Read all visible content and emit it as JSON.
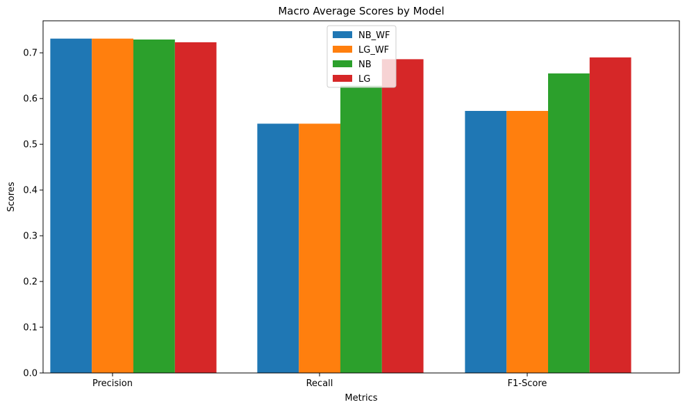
{
  "chart_data": {
    "type": "bar",
    "title": "Macro Average Scores by Model",
    "xlabel": "Metrics",
    "ylabel": "Scores",
    "categories": [
      "Precision",
      "Recall",
      "F1-Score"
    ],
    "ylim": [
      0,
      0.77
    ],
    "yticks": [
      "0.0",
      "0.1",
      "0.2",
      "0.3",
      "0.4",
      "0.5",
      "0.6",
      "0.7"
    ],
    "legend_position": "upper-center",
    "grid": false,
    "series": [
      {
        "name": "NB_WF",
        "color": "#1f77b4",
        "values": [
          0.731,
          0.545,
          0.573
        ]
      },
      {
        "name": "LG_WF",
        "color": "#ff7f0e",
        "values": [
          0.731,
          0.545,
          0.573
        ]
      },
      {
        "name": "NB",
        "color": "#2ca02c",
        "values": [
          0.729,
          0.628,
          0.655
        ]
      },
      {
        "name": "LG",
        "color": "#d62728",
        "values": [
          0.723,
          0.686,
          0.69
        ]
      }
    ]
  }
}
